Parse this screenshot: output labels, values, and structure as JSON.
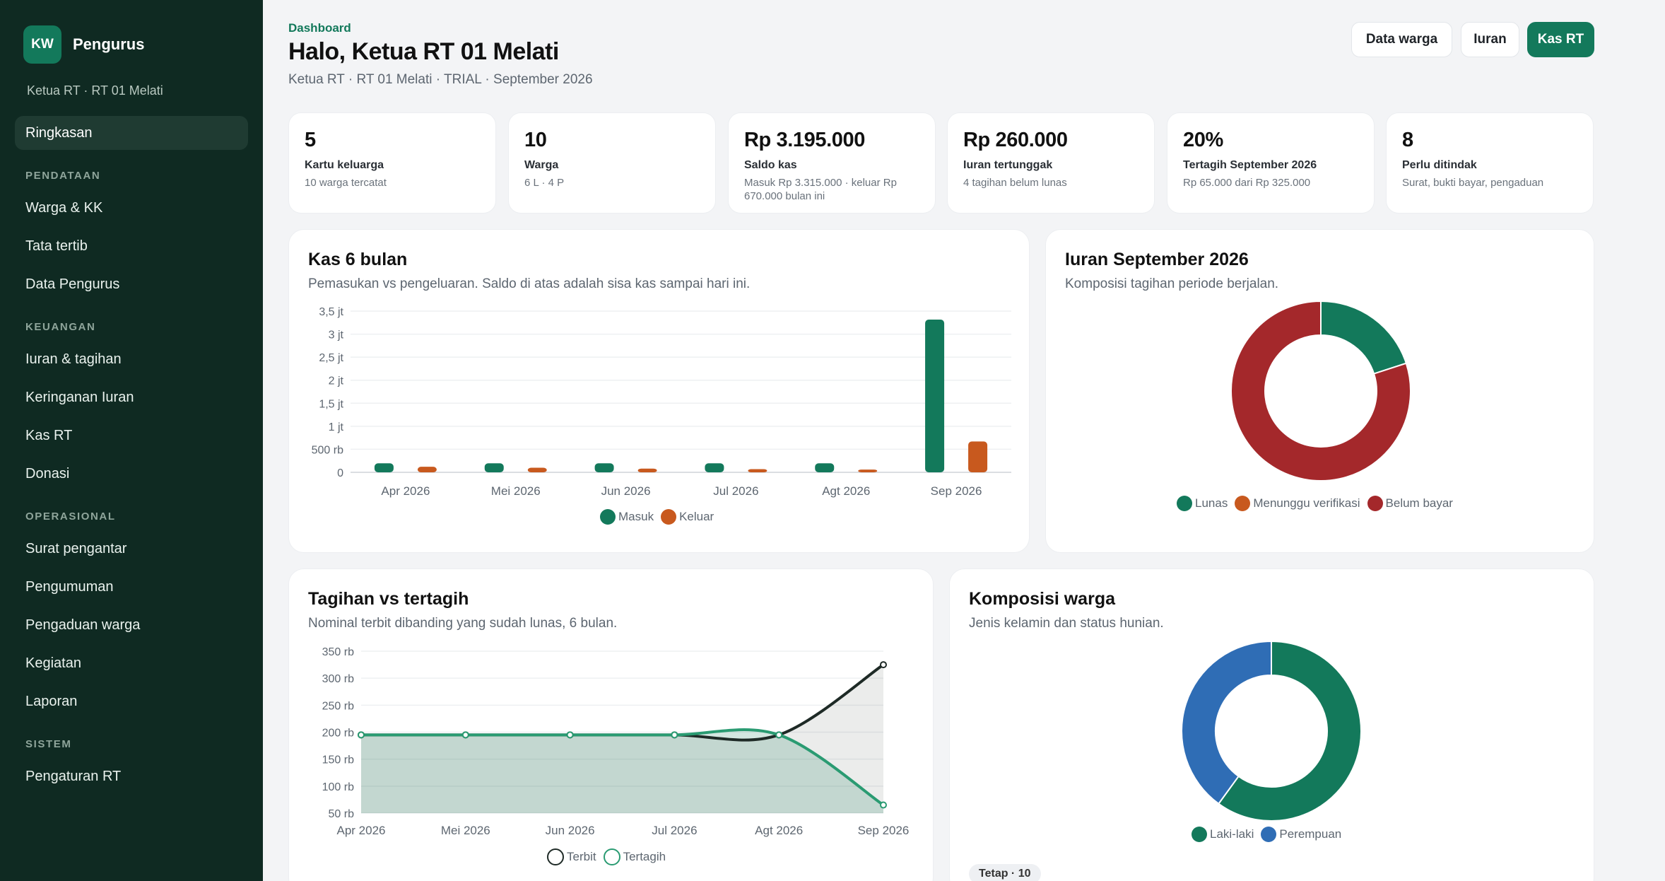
{
  "sidebar": {
    "logo_text": "KW",
    "brand": "Pengurus",
    "subtitle": "Ketua RT · RT 01 Melati",
    "active": "Ringkasan",
    "sections": [
      {
        "title": "PENDATAAN",
        "items": [
          "Warga & KK",
          "Tata tertib",
          "Data Pengurus"
        ]
      },
      {
        "title": "KEUANGAN",
        "items": [
          "Iuran & tagihan",
          "Keringanan Iuran",
          "Kas RT",
          "Donasi"
        ]
      },
      {
        "title": "OPERASIONAL",
        "items": [
          "Surat pengantar",
          "Pengumuman",
          "Pengaduan warga",
          "Kegiatan",
          "Laporan"
        ]
      },
      {
        "title": "SISTEM",
        "items": [
          "Pengaturan RT"
        ]
      }
    ]
  },
  "header": {
    "eyebrow": "Dashboard",
    "title": "Halo, Ketua RT 01 Melati",
    "subtitle": "Ketua RT · RT 01 Melati · TRIAL · September 2026",
    "buttons": [
      "Data warga",
      "Iuran",
      "Kas RT"
    ]
  },
  "stats": [
    {
      "value": "5",
      "label": "Kartu keluarga",
      "desc": "10 warga tercatat"
    },
    {
      "value": "10",
      "label": "Warga",
      "desc": "6 L · 4 P"
    },
    {
      "value": "Rp 3.195.000",
      "label": "Saldo kas",
      "desc": "Masuk Rp 3.315.000 · keluar Rp 670.000 bulan ini"
    },
    {
      "value": "Rp 260.000",
      "label": "Iuran tertunggak",
      "desc": "4 tagihan belum lunas"
    },
    {
      "value": "20%",
      "label": "Tertagih September 2026",
      "desc": "Rp 65.000 dari Rp 325.000"
    },
    {
      "value": "8",
      "label": "Perlu ditindak",
      "desc": "Surat, bukti bayar, pengaduan"
    }
  ],
  "kas": {
    "title": "Kas 6 bulan",
    "subtitle": "Pemasukan vs pengeluaran. Saldo di atas adalah sisa kas sampai hari ini."
  },
  "iuran": {
    "title": "Iuran September 2026",
    "subtitle": "Komposisi tagihan periode berjalan."
  },
  "tagihan": {
    "title": "Tagihan vs tertagih",
    "subtitle": "Nominal terbit dibanding yang sudah lunas, 6 bulan."
  },
  "komposisi": {
    "title": "Komposisi warga",
    "subtitle": "Jenis kelamin dan status hunian.",
    "tag": "Tetap · 10"
  },
  "colors": {
    "green": "#13795b",
    "orange": "#c8591e",
    "red": "#a4282b",
    "blue": "#2f6db5",
    "dark": "#1e2a26",
    "teal": "#2a9b72"
  },
  "chart_data": [
    {
      "type": "bar",
      "categories": [
        "Apr 2026",
        "Mei 2026",
        "Jun 2026",
        "Jul 2026",
        "Agt 2026",
        "Sep 2026"
      ],
      "series": [
        {
          "name": "Masuk",
          "values": [
            195000,
            195000,
            195000,
            195000,
            195000,
            3315000
          ]
        },
        {
          "name": "Keluar",
          "values": [
            120000,
            100000,
            80000,
            70000,
            60000,
            670000
          ]
        }
      ],
      "yticks": [
        "0",
        "500 rb",
        "1 jt",
        "1,5 jt",
        "2 jt",
        "2,5 jt",
        "3 jt",
        "3,5 jt"
      ],
      "ylim": [
        0,
        3500000
      ],
      "legend": "bottom"
    },
    {
      "type": "pie",
      "labels": [
        "Lunas",
        "Menunggu verifikasi",
        "Belum bayar"
      ],
      "values": [
        65000,
        0,
        260000
      ],
      "legend": "bottom"
    },
    {
      "type": "area",
      "categories": [
        "Apr 2026",
        "Mei 2026",
        "Jun 2026",
        "Jul 2026",
        "Agt 2026",
        "Sep 2026"
      ],
      "series": [
        {
          "name": "Terbit",
          "values": [
            195000,
            195000,
            195000,
            195000,
            195000,
            325000
          ]
        },
        {
          "name": "Tertagih",
          "values": [
            195000,
            195000,
            195000,
            195000,
            195000,
            65000
          ]
        }
      ],
      "yticks": [
        "50 rb",
        "100 rb",
        "150 rb",
        "200 rb",
        "250 rb",
        "300 rb",
        "350 rb"
      ],
      "ylim": [
        50000,
        350000
      ],
      "legend": "bottom"
    },
    {
      "type": "pie",
      "labels": [
        "Laki-laki",
        "Perempuan"
      ],
      "values": [
        6,
        4
      ],
      "legend": "bottom"
    }
  ]
}
